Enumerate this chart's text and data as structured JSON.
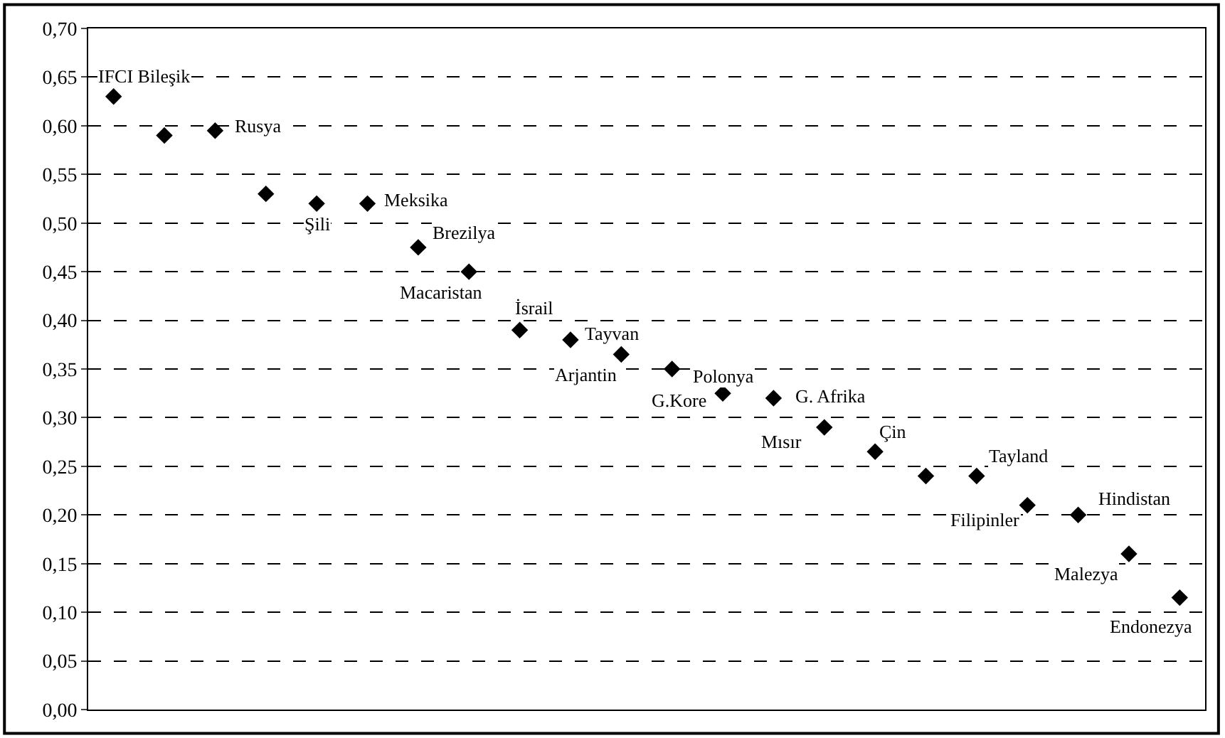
{
  "chart_data": {
    "type": "scatter",
    "categories": [
      null,
      null,
      null,
      null,
      null,
      null,
      null,
      null,
      null,
      null,
      null,
      null,
      null,
      null,
      null,
      null,
      null,
      null,
      null,
      null,
      null,
      null
    ],
    "series": [
      {
        "color": "#000000",
        "values": [
          0.63,
          0.59,
          0.595,
          0.53,
          0.52,
          0.52,
          0.475,
          0.45,
          0.39,
          0.38,
          0.365,
          0.35,
          0.325,
          0.32,
          0.29,
          0.265,
          0.24,
          0.24,
          0.21,
          0.2,
          0.16,
          0.115
        ],
        "value_labels": [
          "IFCI Bileşik",
          null,
          "Rusya",
          null,
          "Şili",
          "Meksika",
          "Brezilya",
          "Macaristan",
          "İsrail",
          "Tayvan",
          "Arjantin",
          "G.Kore",
          "Polonya",
          "G. Afrika",
          "Mısır",
          "Çin",
          null,
          "Tayland",
          "Filipinler",
          "Hindistan",
          "Malezya",
          "Endonezya"
        ]
      }
    ],
    "ylim": [
      0,
      0.7
    ],
    "yticks": [
      {
        "value": 0,
        "label": "0,00"
      },
      {
        "value": 0.05,
        "label": "0,05"
      },
      {
        "value": 0.1,
        "label": "0,10"
      },
      {
        "value": 0.15,
        "label": "0,15"
      },
      {
        "value": 0.2,
        "label": "0,20"
      },
      {
        "value": 0.25,
        "label": "0,25"
      },
      {
        "value": 0.3,
        "label": "0,30"
      },
      {
        "value": 0.35,
        "label": "0,35"
      },
      {
        "value": 0.4,
        "label": "0,40"
      },
      {
        "value": 0.45,
        "label": "0,45"
      },
      {
        "value": 0.5,
        "label": "0,50"
      },
      {
        "value": 0.55,
        "label": "0,55"
      },
      {
        "value": 0.6,
        "label": "0,60"
      },
      {
        "value": 0.65,
        "label": "0,65"
      },
      {
        "value": 0.7,
        "label": "0,70"
      }
    ],
    "grid": "y",
    "marker": "diamond",
    "tick_labels": "y"
  }
}
